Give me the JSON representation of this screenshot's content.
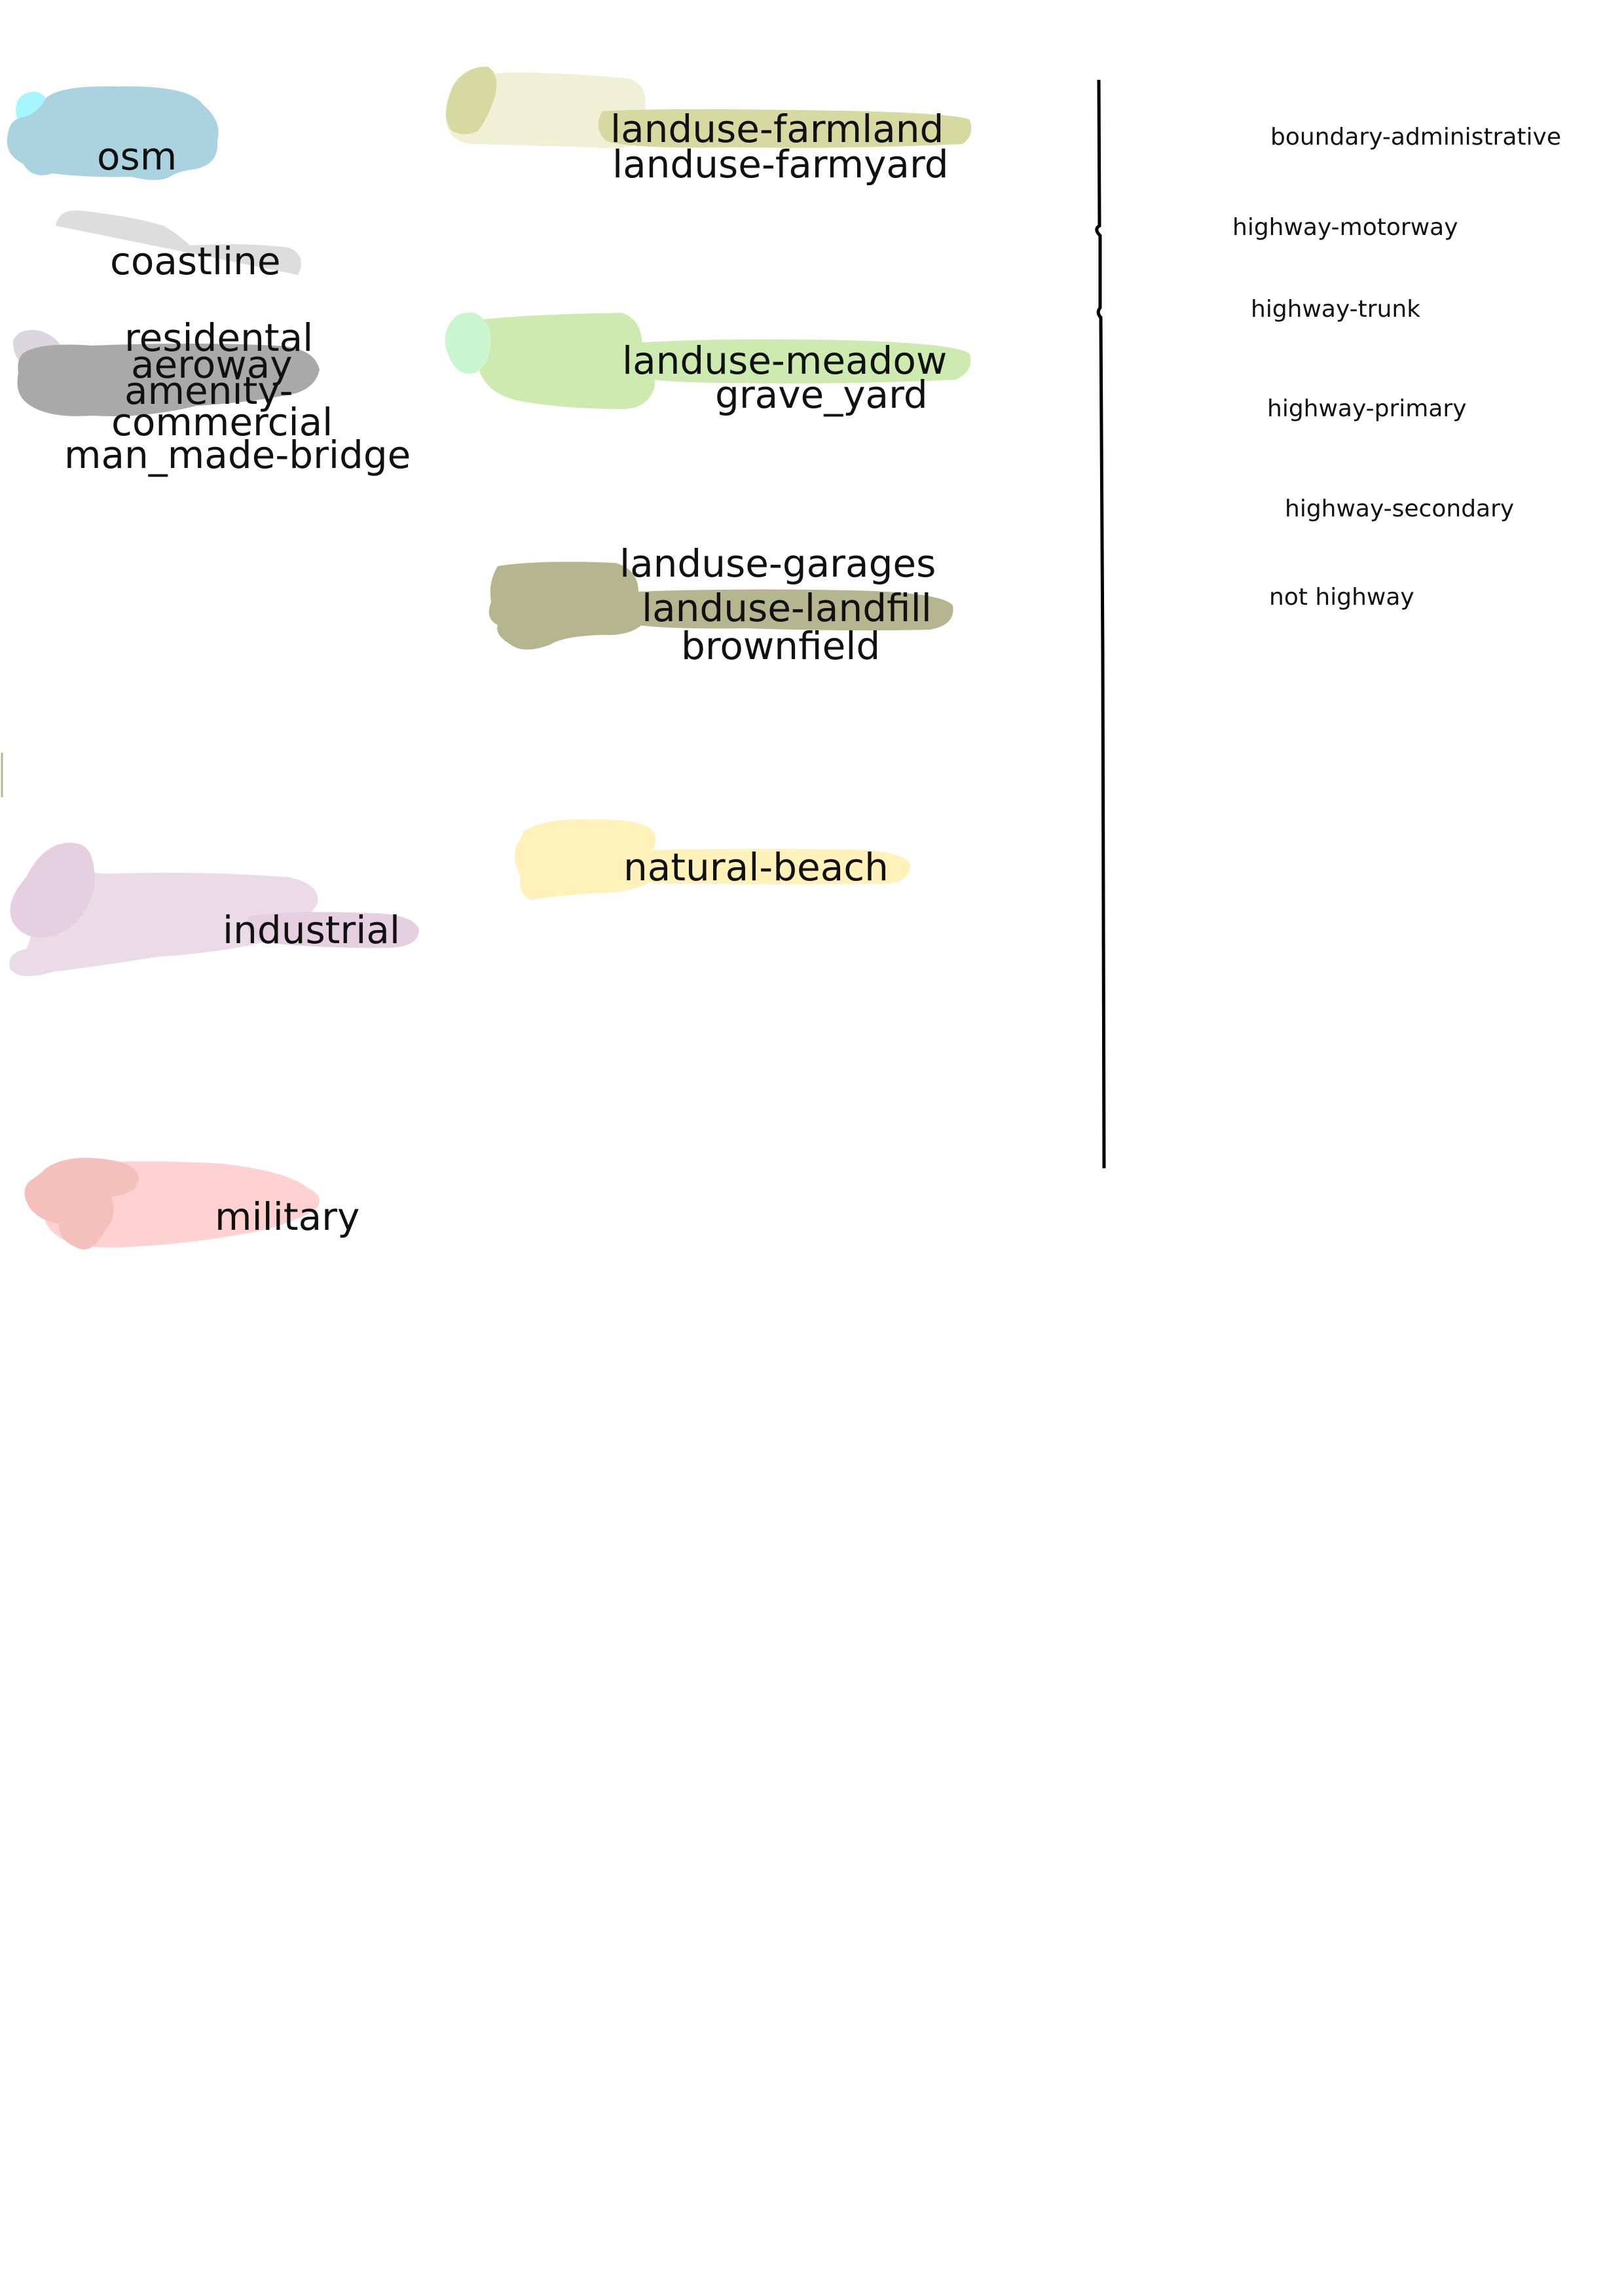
{
  "colors": {
    "osm": "#aad3df",
    "osm_accent": "#a6f6ff",
    "coastline": "#dddddd",
    "residential": "#d9d6e0",
    "aeroway_commercial": "#a9a9a9",
    "farmland": "#eff0d6",
    "farmland_accent": "#d6d9a0",
    "meadow": "#cdebb0",
    "meadow_accent": "#c9f5cf",
    "garages": "#b5b590",
    "beach": "#fff1ba",
    "industrial": "#ebdbe8",
    "industrial_accent": "#e6cfe1",
    "military": "#ffd1d1",
    "military_accent": "#f5bfbb",
    "highway_line": "#000000"
  },
  "left_column": {
    "osm": "osm",
    "coastline": "coastline",
    "residental": "residental",
    "aeroway": "aeroway",
    "amenity": "amenity-",
    "commercial": "commercial",
    "man_made_bridge": "man_made-bridge",
    "industrial": "industrial",
    "military": "military"
  },
  "middle_column": {
    "landuse_farmland": "landuse-farmland",
    "landuse_farmyard": "landuse-farmyard",
    "landuse_meadow": "landuse-meadow",
    "grave_yard": "grave_yard",
    "landuse_garages": "landuse-garages",
    "landuse_landfill": "landuse-landfill",
    "brownfield": "brownfield",
    "natural_beach": "natural-beach"
  },
  "right_column": {
    "boundary_administrative": "boundary-administrative",
    "highway_motorway": "highway-motorway",
    "highway_trunk": "highway-trunk",
    "highway_primary": "highway-primary",
    "highway_secondary": "highway-secondary",
    "not_highway": "not highway"
  }
}
